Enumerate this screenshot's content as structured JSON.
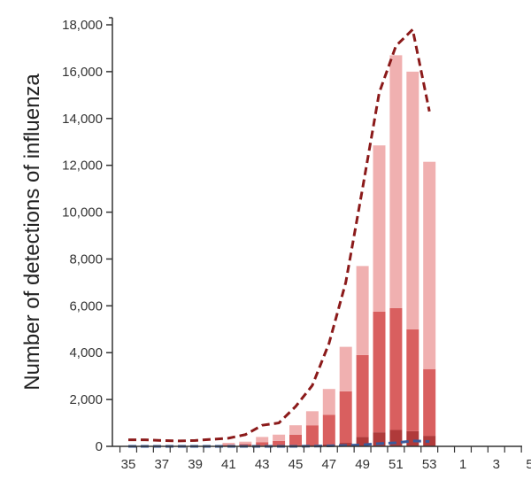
{
  "chart_data": {
    "type": "bar",
    "stacked": true,
    "title": "",
    "xlabel": "",
    "ylabel": "Number of detections of influenza",
    "x_ticks": [
      "35",
      "37",
      "39",
      "41",
      "43",
      "45",
      "47",
      "49",
      "51",
      "53",
      "1",
      "3",
      "5"
    ],
    "y_ticks": [
      "0",
      "2,000",
      "4,000",
      "6,000",
      "8,000",
      "10,000",
      "12,000",
      "14,000",
      "16,000",
      "18,000"
    ],
    "ylim": [
      0,
      18000
    ],
    "grid": false,
    "legend": "none",
    "weeks": [
      35,
      36,
      37,
      38,
      39,
      40,
      41,
      42,
      43,
      44,
      45,
      46,
      47,
      48,
      49,
      50,
      51,
      52,
      53
    ],
    "series": [
      {
        "color": "#b03a3a",
        "values": [
          0,
          0,
          0,
          0,
          0,
          0,
          10,
          15,
          25,
          30,
          40,
          60,
          90,
          150,
          400,
          600,
          700,
          650,
          450
        ]
      },
      {
        "color": "#d95f5f",
        "values": [
          0,
          0,
          0,
          0,
          0,
          0,
          60,
          90,
          155,
          200,
          460,
          840,
          1260,
          2200,
          3500,
          5150,
          5200,
          4350,
          2850
        ]
      },
      {
        "color": "#f0b0b0",
        "values": [
          0,
          0,
          0,
          0,
          0,
          0,
          80,
          95,
          220,
          270,
          400,
          600,
          1100,
          1900,
          3800,
          7100,
          10800,
          11000,
          8850
        ]
      }
    ],
    "lines": [
      {
        "style": "dashed",
        "color": "#8b1a1a",
        "values": [
          280,
          280,
          250,
          230,
          250,
          300,
          350,
          500,
          900,
          1000,
          1700,
          2600,
          4400,
          7000,
          11000,
          15100,
          17100,
          17800,
          14300
        ]
      },
      {
        "style": "dashed",
        "color": "#3a5a9a",
        "values": [
          0,
          0,
          0,
          0,
          0,
          0,
          0,
          0,
          0,
          0,
          0,
          10,
          20,
          40,
          60,
          120,
          150,
          230,
          210
        ]
      }
    ]
  }
}
